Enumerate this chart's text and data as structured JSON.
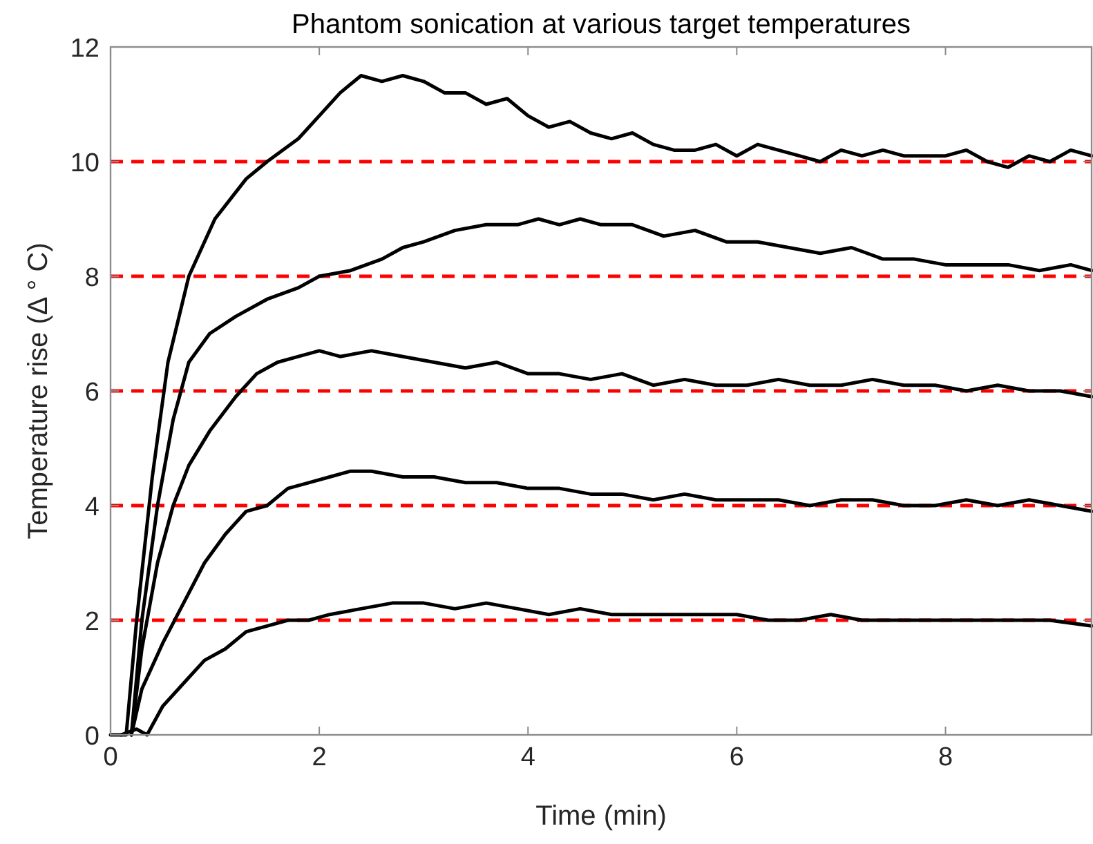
{
  "chart_data": {
    "type": "line",
    "title": "Phantom sonication at various target temperatures",
    "xlabel": "Time (min)",
    "ylabel": "Temperature rise (Δ ° C)",
    "xlim": [
      0,
      9.4
    ],
    "xticks": [
      0,
      2,
      4,
      6,
      8
    ],
    "ylim": [
      0,
      12
    ],
    "yticks": [
      0,
      2,
      4,
      6,
      8,
      10,
      12
    ],
    "grid": false,
    "marker": "none",
    "line_style": "solid",
    "series": [
      {
        "color": "#000000",
        "x": [
          0,
          0.1,
          0.15,
          0.25,
          0.4,
          0.55,
          0.75,
          1.0,
          1.3,
          1.5,
          1.8,
          2.0,
          2.2,
          2.4,
          2.6,
          2.8,
          3.0,
          3.2,
          3.4,
          3.6,
          3.8,
          4.0,
          4.2,
          4.4,
          4.6,
          4.8,
          5.0,
          5.2,
          5.4,
          5.6,
          5.8,
          6.0,
          6.2,
          6.4,
          6.6,
          6.8,
          7.0,
          7.2,
          7.4,
          7.6,
          7.8,
          8.0,
          8.2,
          8.4,
          8.6,
          8.8,
          9.0,
          9.2,
          9.4
        ],
        "values": [
          0,
          0,
          0,
          2,
          4.5,
          6.5,
          8,
          9,
          9.7,
          10,
          10.4,
          10.8,
          11.2,
          11.5,
          11.4,
          11.5,
          11.4,
          11.2,
          11.2,
          11.0,
          11.1,
          10.8,
          10.6,
          10.7,
          10.5,
          10.4,
          10.5,
          10.3,
          10.2,
          10.2,
          10.3,
          10.1,
          10.3,
          10.2,
          10.1,
          10.0,
          10.2,
          10.1,
          10.2,
          10.1,
          10.1,
          10.1,
          10.2,
          10.0,
          9.9,
          10.1,
          10.0,
          10.2,
          10.1
        ]
      },
      {
        "color": "#000000",
        "x": [
          0.2,
          0.3,
          0.45,
          0.6,
          0.75,
          0.95,
          1.2,
          1.5,
          1.8,
          2.0,
          2.3,
          2.6,
          2.8,
          3.0,
          3.3,
          3.6,
          3.9,
          4.1,
          4.3,
          4.5,
          4.7,
          5.0,
          5.3,
          5.6,
          5.9,
          6.2,
          6.5,
          6.8,
          7.1,
          7.4,
          7.7,
          8.0,
          8.3,
          8.6,
          8.9,
          9.2,
          9.4
        ],
        "values": [
          0,
          2,
          4,
          5.5,
          6.5,
          7.0,
          7.3,
          7.6,
          7.8,
          8.0,
          8.1,
          8.3,
          8.5,
          8.6,
          8.8,
          8.9,
          8.9,
          9.0,
          8.9,
          9.0,
          8.9,
          8.9,
          8.7,
          8.8,
          8.6,
          8.6,
          8.5,
          8.4,
          8.5,
          8.3,
          8.3,
          8.2,
          8.2,
          8.2,
          8.1,
          8.2,
          8.1
        ]
      },
      {
        "color": "#000000",
        "x": [
          0.2,
          0.3,
          0.45,
          0.6,
          0.75,
          0.95,
          1.2,
          1.4,
          1.6,
          1.8,
          2.0,
          2.2,
          2.5,
          2.8,
          3.1,
          3.4,
          3.7,
          4.0,
          4.3,
          4.6,
          4.9,
          5.2,
          5.5,
          5.8,
          6.1,
          6.4,
          6.7,
          7.0,
          7.3,
          7.6,
          7.9,
          8.2,
          8.5,
          8.8,
          9.1,
          9.4
        ],
        "values": [
          0,
          1.5,
          3,
          4,
          4.7,
          5.3,
          5.9,
          6.3,
          6.5,
          6.6,
          6.7,
          6.6,
          6.7,
          6.6,
          6.5,
          6.4,
          6.5,
          6.3,
          6.3,
          6.2,
          6.3,
          6.1,
          6.2,
          6.1,
          6.1,
          6.2,
          6.1,
          6.1,
          6.2,
          6.1,
          6.1,
          6.0,
          6.1,
          6.0,
          6.0,
          5.9
        ]
      },
      {
        "color": "#000000",
        "x": [
          0.2,
          0.3,
          0.5,
          0.7,
          0.9,
          1.1,
          1.3,
          1.5,
          1.7,
          1.9,
          2.1,
          2.3,
          2.5,
          2.8,
          3.1,
          3.4,
          3.7,
          4.0,
          4.3,
          4.6,
          4.9,
          5.2,
          5.5,
          5.8,
          6.1,
          6.4,
          6.7,
          7.0,
          7.3,
          7.6,
          7.9,
          8.2,
          8.5,
          8.8,
          9.1,
          9.4
        ],
        "values": [
          0,
          0.8,
          1.6,
          2.3,
          3.0,
          3.5,
          3.9,
          4.0,
          4.3,
          4.4,
          4.5,
          4.6,
          4.6,
          4.5,
          4.5,
          4.4,
          4.4,
          4.3,
          4.3,
          4.2,
          4.2,
          4.1,
          4.2,
          4.1,
          4.1,
          4.1,
          4.0,
          4.1,
          4.1,
          4.0,
          4.0,
          4.1,
          4.0,
          4.1,
          4.0,
          3.9
        ]
      },
      {
        "color": "#000000",
        "x": [
          0.1,
          0.25,
          0.35,
          0.5,
          0.7,
          0.9,
          1.1,
          1.3,
          1.5,
          1.7,
          1.9,
          2.1,
          2.4,
          2.7,
          3.0,
          3.3,
          3.6,
          3.9,
          4.2,
          4.5,
          4.8,
          5.1,
          5.4,
          5.7,
          6.0,
          6.3,
          6.6,
          6.9,
          7.2,
          7.5,
          7.8,
          8.1,
          8.4,
          8.7,
          9.0,
          9.4
        ],
        "values": [
          0,
          0.1,
          0,
          0.5,
          0.9,
          1.3,
          1.5,
          1.8,
          1.9,
          2.0,
          2.0,
          2.1,
          2.2,
          2.3,
          2.3,
          2.2,
          2.3,
          2.2,
          2.1,
          2.2,
          2.1,
          2.1,
          2.1,
          2.1,
          2.1,
          2.0,
          2.0,
          2.1,
          2.0,
          2.0,
          2.0,
          2.0,
          2.0,
          2.0,
          2.0,
          1.9
        ]
      }
    ],
    "ref_lines": [
      {
        "axis": "y",
        "value": 2,
        "color": "#ff0000",
        "line_style": "dashed"
      },
      {
        "axis": "y",
        "value": 4,
        "color": "#ff0000",
        "line_style": "dashed"
      },
      {
        "axis": "y",
        "value": 6,
        "color": "#ff0000",
        "line_style": "dashed"
      },
      {
        "axis": "y",
        "value": 8,
        "color": "#ff0000",
        "line_style": "dashed"
      },
      {
        "axis": "y",
        "value": 10,
        "color": "#ff0000",
        "line_style": "dashed"
      }
    ]
  }
}
